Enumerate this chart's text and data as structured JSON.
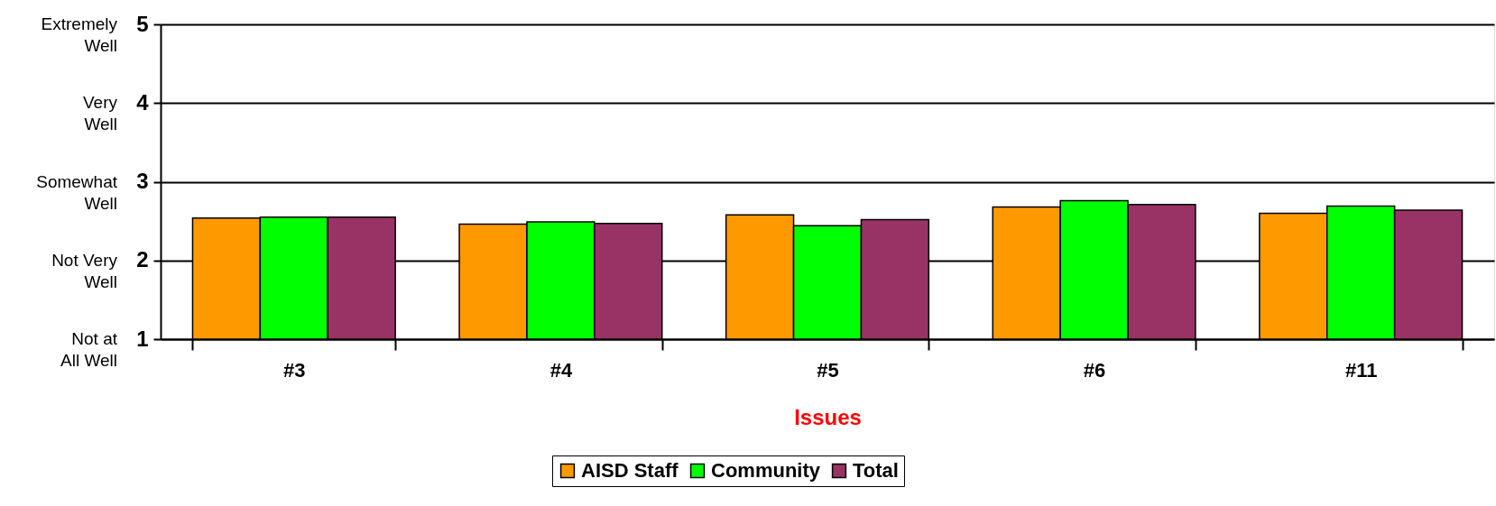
{
  "chart_data": {
    "type": "bar",
    "xlabel": "Issues",
    "categories": [
      "#3",
      "#4",
      "#5",
      "#6",
      "#11"
    ],
    "series": [
      {
        "name": "AISD Staff",
        "color": "#ff9900",
        "values": [
          2.54,
          2.46,
          2.58,
          2.68,
          2.6
        ]
      },
      {
        "name": "Community",
        "color": "#00ff00",
        "values": [
          2.55,
          2.49,
          2.44,
          2.76,
          2.69
        ]
      },
      {
        "name": "Total",
        "color": "#993366",
        "values": [
          2.55,
          2.47,
          2.52,
          2.71,
          2.64
        ]
      }
    ],
    "ylim": [
      1,
      5
    ],
    "yticks": [
      1,
      2,
      3,
      4,
      5
    ],
    "annotations": [
      "Not at All Well",
      "Not Very Well",
      "Somewhat Well",
      "Very Well",
      "Extremely Well"
    ],
    "grid": "y",
    "legend": "bottom"
  }
}
